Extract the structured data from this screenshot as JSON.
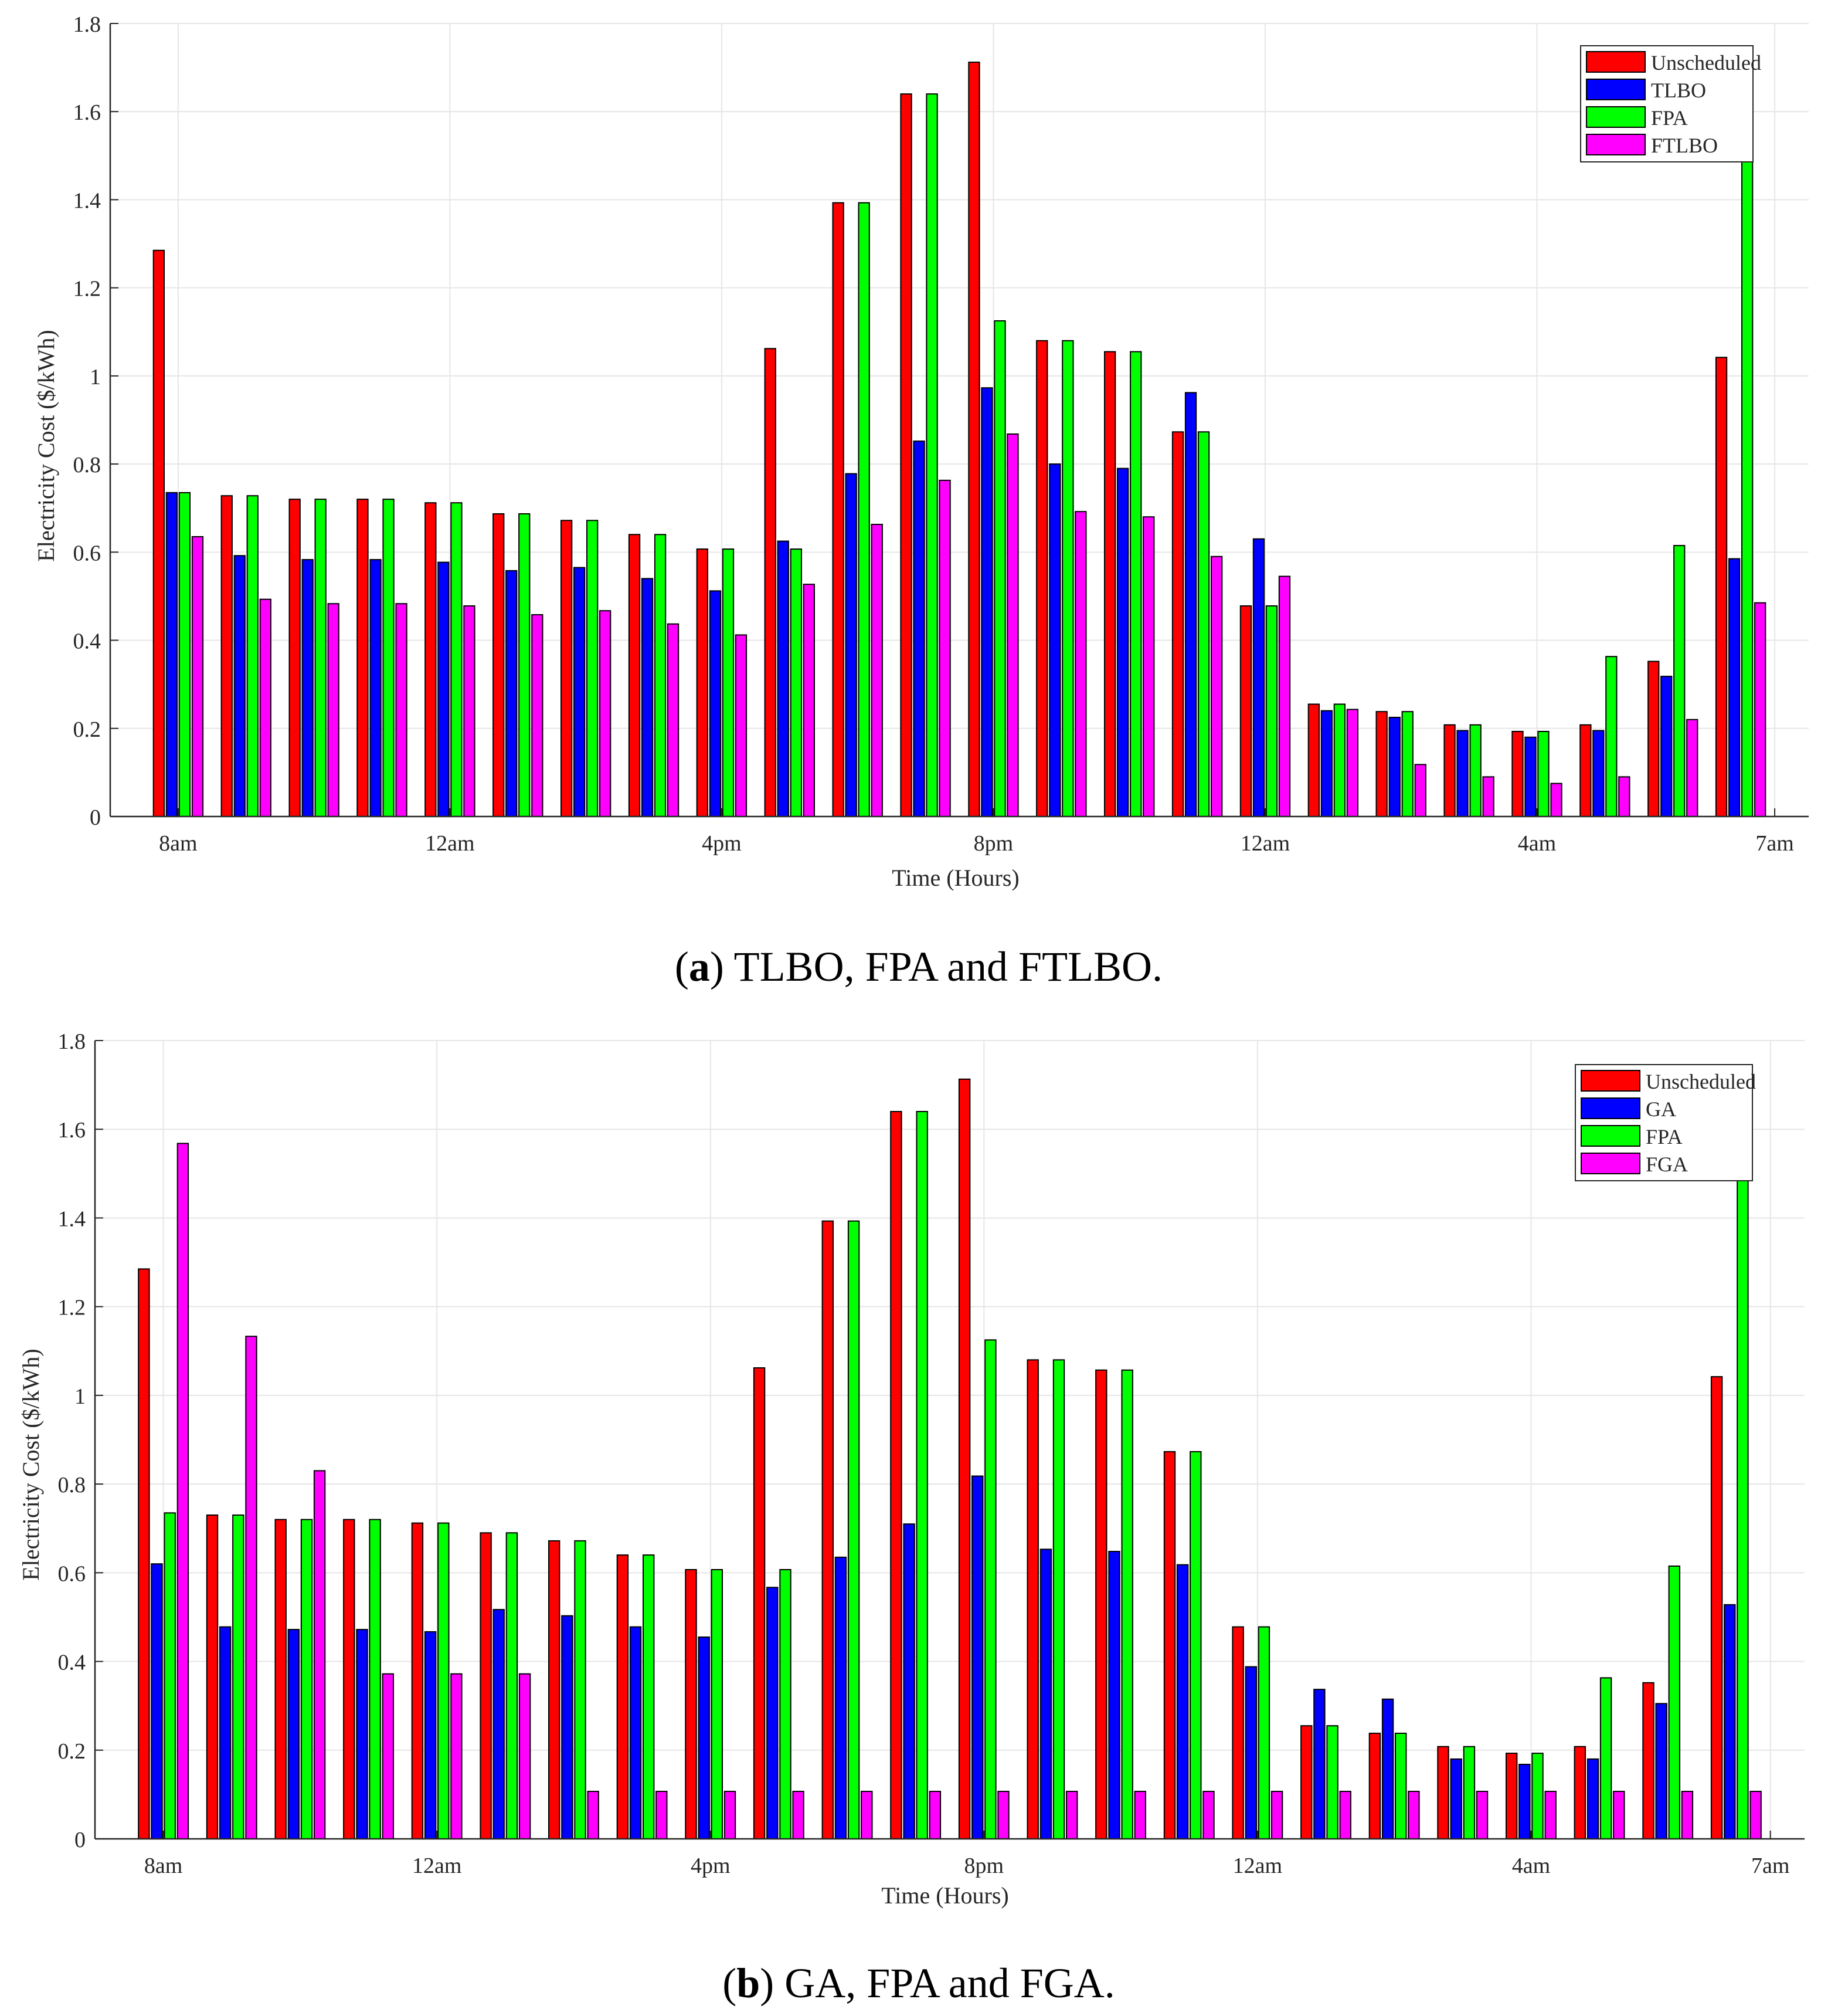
{
  "colors": {
    "unscheduled": "#ff0000",
    "second": "#0000ff",
    "fpa": "#00ff00",
    "fourth": "#ff00ff",
    "grid": "#e6e6e6",
    "axis": "#262626"
  },
  "chart_data": [
    {
      "type": "bar",
      "panel": "a",
      "ylabel": "Electricity Cost ($/kWh)",
      "xlabel": "Time (Hours)",
      "ylim": [
        0,
        1.8
      ],
      "yticks": [
        "0",
        "0.2",
        "0.4",
        "0.6",
        "0.8",
        "1",
        "1.2",
        "1.4",
        "1.6",
        "1.8"
      ],
      "xtick_labels": [
        "8am",
        "12am",
        "4pm",
        "8pm",
        "12am",
        "4am",
        "7am"
      ],
      "xtick_positions": [
        1,
        5,
        9,
        13,
        17,
        21,
        24.5
      ],
      "categories": [
        "1",
        "2",
        "3",
        "4",
        "5",
        "6",
        "7",
        "8",
        "9",
        "10",
        "11",
        "12",
        "13",
        "14",
        "15",
        "16",
        "17",
        "18",
        "19",
        "20",
        "21",
        "22",
        "23",
        "24"
      ],
      "series": [
        {
          "name": "Unscheduled",
          "color_key": "unscheduled",
          "values": [
            1.285,
            0.728,
            0.72,
            0.72,
            0.712,
            0.687,
            0.672,
            0.64,
            0.607,
            1.062,
            1.393,
            1.64,
            1.712,
            1.08,
            1.055,
            0.873,
            0.478,
            0.255,
            0.238,
            0.208,
            0.193,
            0.208,
            0.352,
            1.042
          ]
        },
        {
          "name": "TLBO",
          "color_key": "second",
          "values": [
            0.735,
            0.592,
            0.583,
            0.583,
            0.577,
            0.558,
            0.565,
            0.54,
            0.512,
            0.625,
            0.778,
            0.852,
            0.973,
            0.8,
            0.79,
            0.962,
            0.63,
            0.24,
            0.225,
            0.195,
            0.18,
            0.195,
            0.318,
            0.585
          ]
        },
        {
          "name": "FPA",
          "color_key": "fpa",
          "values": [
            0.735,
            0.728,
            0.72,
            0.72,
            0.712,
            0.687,
            0.672,
            0.64,
            0.607,
            0.607,
            1.393,
            1.64,
            1.125,
            1.08,
            1.055,
            0.873,
            0.478,
            0.255,
            0.238,
            0.208,
            0.193,
            0.363,
            0.615,
            1.5
          ]
        },
        {
          "name": "FTLBO",
          "color_key": "fourth",
          "values": [
            0.635,
            0.493,
            0.483,
            0.483,
            0.478,
            0.458,
            0.467,
            0.437,
            0.412,
            0.527,
            0.663,
            0.763,
            0.868,
            0.692,
            0.68,
            0.59,
            0.545,
            0.243,
            0.118,
            0.09,
            0.075,
            0.09,
            0.22,
            0.485
          ]
        }
      ],
      "caption_label": "a",
      "caption_text": "TLBO, FPA and FTLBO."
    },
    {
      "type": "bar",
      "panel": "b",
      "ylabel": "Electricity Cost ($/kWh)",
      "xlabel": "Time (Hours)",
      "ylim": [
        0,
        1.8
      ],
      "yticks": [
        "0",
        "0.2",
        "0.4",
        "0.6",
        "0.8",
        "1",
        "1.2",
        "1.4",
        "1.6",
        "1.8"
      ],
      "xtick_labels": [
        "8am",
        "12am",
        "4pm",
        "8pm",
        "12am",
        "4am",
        "7am"
      ],
      "xtick_positions": [
        1,
        5,
        9,
        13,
        17,
        21,
        24.5
      ],
      "categories": [
        "1",
        "2",
        "3",
        "4",
        "5",
        "6",
        "7",
        "8",
        "9",
        "10",
        "11",
        "12",
        "13",
        "14",
        "15",
        "16",
        "17",
        "18",
        "19",
        "20",
        "21",
        "22",
        "23",
        "24"
      ],
      "series": [
        {
          "name": "Unscheduled",
          "color_key": "unscheduled",
          "values": [
            1.285,
            0.73,
            0.72,
            0.72,
            0.712,
            0.69,
            0.672,
            0.64,
            0.607,
            1.062,
            1.393,
            1.64,
            1.713,
            1.08,
            1.057,
            0.873,
            0.478,
            0.255,
            0.238,
            0.208,
            0.193,
            0.208,
            0.352,
            1.042
          ]
        },
        {
          "name": "GA",
          "color_key": "second",
          "values": [
            0.62,
            0.478,
            0.472,
            0.472,
            0.467,
            0.517,
            0.503,
            0.478,
            0.455,
            0.567,
            0.635,
            0.71,
            0.818,
            0.653,
            0.648,
            0.618,
            0.388,
            0.337,
            0.315,
            0.18,
            0.168,
            0.18,
            0.305,
            0.528
          ]
        },
        {
          "name": "FPA",
          "color_key": "fpa",
          "values": [
            0.735,
            0.73,
            0.72,
            0.72,
            0.712,
            0.69,
            0.672,
            0.64,
            0.607,
            0.607,
            1.393,
            1.64,
            1.125,
            1.08,
            1.057,
            0.873,
            0.478,
            0.255,
            0.238,
            0.208,
            0.193,
            0.363,
            0.615,
            1.5
          ]
        },
        {
          "name": "FGA",
          "color_key": "fourth",
          "values": [
            1.568,
            1.133,
            0.83,
            0.372,
            0.372,
            0.372,
            0.107,
            0.107,
            0.107,
            0.107,
            0.107,
            0.107,
            0.107,
            0.107,
            0.107,
            0.107,
            0.107,
            0.107,
            0.107,
            0.107,
            0.107,
            0.107,
            0.107,
            0.107
          ]
        }
      ],
      "caption_label": "b",
      "caption_text": "GA, FPA and FGA."
    }
  ]
}
